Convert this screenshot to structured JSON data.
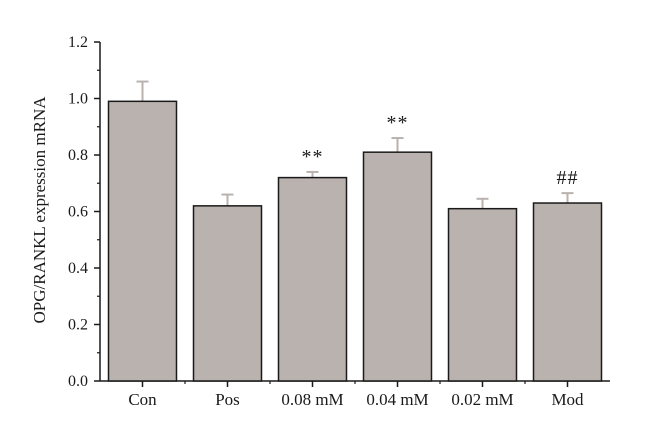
{
  "chart_data": {
    "type": "bar",
    "title": "",
    "xlabel": "",
    "ylabel": "OPG/RANKL expression mRNA",
    "ylim": [
      0,
      1.2
    ],
    "yticks": [
      "0.0",
      "0.2",
      "0.4",
      "0.6",
      "0.8",
      "1.0",
      "1.2"
    ],
    "categories": [
      "Con",
      "Pos",
      "0.08 mM",
      "0.04 mM",
      "0.02 mM",
      "Mod"
    ],
    "values": [
      0.99,
      0.62,
      0.72,
      0.81,
      0.61,
      0.63
    ],
    "errors": [
      0.07,
      0.04,
      0.02,
      0.05,
      0.035,
      0.035
    ],
    "annotations": [
      "",
      "",
      "**",
      "**",
      "",
      "##"
    ],
    "grid": false,
    "colors": {
      "bar_fill": "#b9b2ae",
      "bar_stroke": "#1a1a1a",
      "error_bar": "#b9b2ae",
      "axis": "#1a1a1a"
    }
  }
}
